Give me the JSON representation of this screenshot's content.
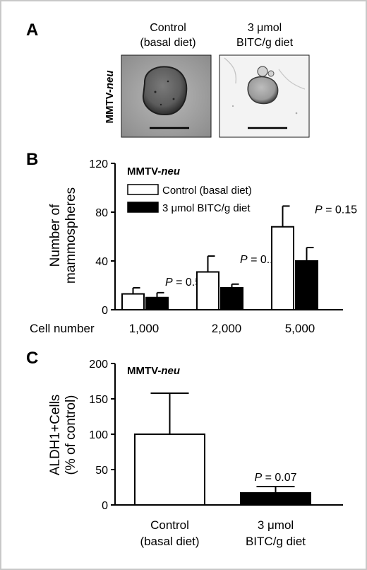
{
  "panel_a": {
    "letter": "A",
    "row_label_prefix": "MMTV-",
    "row_label_italic": "neu",
    "images": [
      {
        "caption_lines": [
          "Control",
          "(basal diet)"
        ],
        "scale_bar": true
      },
      {
        "caption_lines": [
          "3 μmol",
          "BITC/g diet"
        ],
        "scale_bar": true
      }
    ]
  },
  "colors": {
    "control_fill": "#ffffff",
    "bitc_fill": "#000000",
    "frame": "#c8c8c8",
    "image_bg_control": "#9e9e9e",
    "image_bg_bitc": "#f2f2f2"
  },
  "chart_data": [
    {
      "panel": "B",
      "type": "bar",
      "title_prefix": "MMTV-",
      "title_italic": "neu",
      "ylabel_lines": [
        "Number of",
        "mammospheres"
      ],
      "xlabel": "Cell number",
      "ylim": [
        0,
        120
      ],
      "yticks": [
        "0",
        "40",
        "80",
        "120"
      ],
      "yticks_values": [
        0,
        40,
        80,
        120
      ],
      "categories": [
        "1,000",
        "2,000",
        "5,000"
      ],
      "series": [
        {
          "name": "Control (basal diet)",
          "fill": "white",
          "values": [
            13,
            31,
            68
          ],
          "errors": [
            5,
            13,
            17
          ]
        },
        {
          "name": "3 μmol BITC/g diet",
          "fill": "black",
          "values": [
            10,
            18,
            40
          ],
          "errors": [
            4,
            3,
            11
          ]
        }
      ],
      "annotations": [
        {
          "category": "1,000",
          "p_label": "P",
          "p_value": " = 0.50"
        },
        {
          "category": "2,000",
          "p_label": "P",
          "p_value": " = 0.15"
        },
        {
          "category": "5,000",
          "p_label": "P",
          "p_value": " = 0.15"
        }
      ],
      "legend_position": "top-left",
      "grid": false
    },
    {
      "panel": "C",
      "type": "bar",
      "title_prefix": "MMTV-",
      "title_italic": "neu",
      "ylabel_lines": [
        "ALDH1+Cells",
        "(% of control)"
      ],
      "ylim": [
        0,
        200
      ],
      "yticks": [
        "0",
        "50",
        "100",
        "150",
        "200"
      ],
      "yticks_values": [
        0,
        50,
        100,
        150,
        200
      ],
      "categories": [
        [
          "Control",
          "(basal diet)"
        ],
        [
          "3 μmol",
          "BITC/g diet"
        ]
      ],
      "values": [
        100,
        17
      ],
      "errors": [
        58,
        9
      ],
      "fills": [
        "white",
        "black"
      ],
      "annotations": [
        {
          "bar_index": 1,
          "p_label": "P",
          "p_value": " = 0.07"
        }
      ],
      "grid": false
    }
  ]
}
